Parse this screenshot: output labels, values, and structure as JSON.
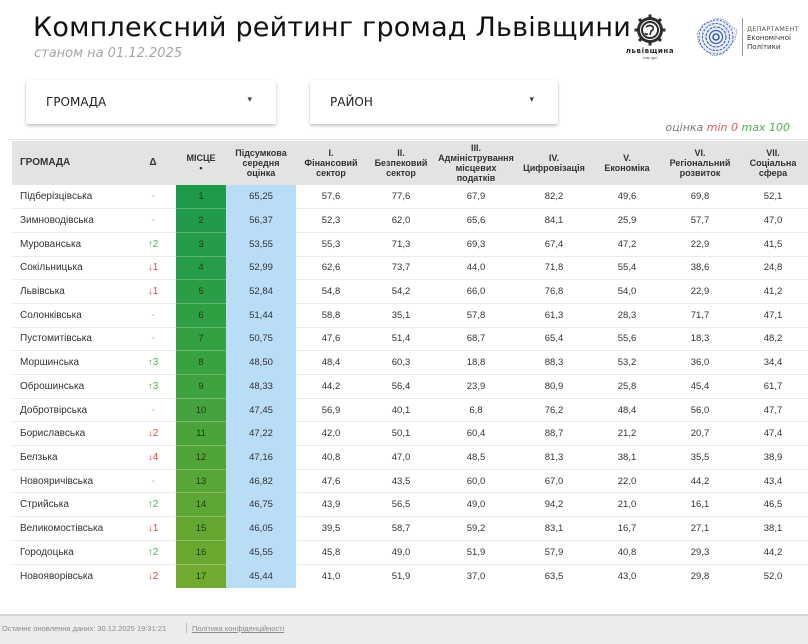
{
  "header": {
    "title": "Комплексний рейтинг громад Львівщини",
    "subtitle": "станом на 01.12.2025",
    "logo_left": {
      "line1": "львівщина",
      "line2": "нові ідеї"
    },
    "logo_right": {
      "line1": "ДЕПАРТАМЕНТ",
      "line2": "Економічної",
      "line3": "Політики"
    }
  },
  "filters": {
    "hromada": {
      "label": "ГРОМАДА",
      "arrow": "▾"
    },
    "raion": {
      "label": "РАЙОН",
      "arrow": "▾"
    }
  },
  "legend": {
    "prefix": "оцінка",
    "min_label": "min 0",
    "max_label": "max 100",
    "min_color": "#d35a5a",
    "max_color": "#4caf50"
  },
  "table": {
    "columns": [
      {
        "key": "name",
        "l1": "ГРОМАДА"
      },
      {
        "key": "delta",
        "l1": "Δ"
      },
      {
        "key": "place",
        "l1": "МІСЦЕ",
        "l2": "•"
      },
      {
        "key": "avg",
        "l1": "Підсумкова",
        "l2": "середня",
        "l3": "оцінка"
      },
      {
        "key": "c1",
        "l1": "I.",
        "l2": "Фінансовий",
        "l3": "сектор"
      },
      {
        "key": "c2",
        "l1": "II.",
        "l2": "Безпековий",
        "l3": "сектор"
      },
      {
        "key": "c3",
        "l1": "III.",
        "l2": "Адміністрування",
        "l3": "місцевих",
        "l4": "податків"
      },
      {
        "key": "c4",
        "l1": "IV.",
        "l2": "Цифровізація"
      },
      {
        "key": "c5",
        "l1": "V.",
        "l2": "Економіка"
      },
      {
        "key": "c6",
        "l1": "VI.",
        "l2": "Регіональний",
        "l3": "розвиток"
      },
      {
        "key": "c7",
        "l1": "VII.",
        "l2": "Соціальна",
        "l3": "сфера"
      }
    ],
    "rows": [
      {
        "name": "Підберізцівська",
        "delta": "-",
        "dir": "none",
        "place": "1",
        "avg": "65,25",
        "c1": "57,6",
        "c2": "77,6",
        "c3": "67,9",
        "c4": "82,2",
        "c5": "49,6",
        "c6": "69,8",
        "c7": "52,1",
        "color": "#1e9a4a"
      },
      {
        "name": "Зимноводівська",
        "delta": "-",
        "dir": "none",
        "place": "2",
        "avg": "56,37",
        "c1": "52,3",
        "c2": "62,0",
        "c3": "65,6",
        "c4": "84,1",
        "c5": "25,9",
        "c6": "57,7",
        "c7": "47,0",
        "color": "#219b49"
      },
      {
        "name": "Мурованська",
        "delta": "↑2",
        "dir": "up",
        "place": "3",
        "avg": "53,55",
        "c1": "55,3",
        "c2": "71,3",
        "c3": "69,3",
        "c4": "67,4",
        "c5": "47,2",
        "c6": "22,9",
        "c7": "41,5",
        "color": "#249c48"
      },
      {
        "name": "Сокільницька",
        "delta": "↓1",
        "dir": "down",
        "place": "4",
        "avg": "52,99",
        "c1": "62,6",
        "c2": "73,7",
        "c3": "44,0",
        "c4": "71,8",
        "c5": "55,4",
        "c6": "38,6",
        "c7": "24,8",
        "color": "#279d47"
      },
      {
        "name": "Львівська",
        "delta": "↓1",
        "dir": "down",
        "place": "5",
        "avg": "52,84",
        "c1": "54,8",
        "c2": "54,2",
        "c3": "66,0",
        "c4": "76,8",
        "c5": "54,0",
        "c6": "22,9",
        "c7": "41,2",
        "color": "#2b9e45"
      },
      {
        "name": "Солонківська",
        "delta": "-",
        "dir": "none",
        "place": "6",
        "avg": "51,44",
        "c1": "58,8",
        "c2": "35,1",
        "c3": "57,8",
        "c4": "61,3",
        "c5": "28,3",
        "c6": "71,7",
        "c7": "47,1",
        "color": "#2f9f44"
      },
      {
        "name": "Пустомитівська",
        "delta": "-",
        "dir": "none",
        "place": "7",
        "avg": "50,75",
        "c1": "47,6",
        "c2": "51,4",
        "c3": "68,7",
        "c4": "65,4",
        "c5": "55,6",
        "c6": "18,3",
        "c7": "48,2",
        "color": "#33a042"
      },
      {
        "name": "Моршинська",
        "delta": "↑3",
        "dir": "up",
        "place": "8",
        "avg": "48,50",
        "c1": "48,4",
        "c2": "60,3",
        "c3": "18,8",
        "c4": "88,3",
        "c5": "53,2",
        "c6": "36,0",
        "c7": "34,4",
        "color": "#38a140"
      },
      {
        "name": "Оброшинська",
        "delta": "↑3",
        "dir": "up",
        "place": "9",
        "avg": "48,33",
        "c1": "44,2",
        "c2": "56,4",
        "c3": "23,9",
        "c4": "80,9",
        "c5": "25,8",
        "c6": "45,4",
        "c7": "61,7",
        "color": "#3ea23e"
      },
      {
        "name": "Добротвірська",
        "delta": "-",
        "dir": "none",
        "place": "10",
        "avg": "47,45",
        "c1": "56,9",
        "c2": "40,1",
        "c3": "6,8",
        "c4": "76,2",
        "c5": "48,4",
        "c6": "56,0",
        "c7": "47,7",
        "color": "#44a33c"
      },
      {
        "name": "Бориславська",
        "delta": "↓2",
        "dir": "down",
        "place": "11",
        "avg": "47,22",
        "c1": "42,0",
        "c2": "50,1",
        "c3": "60,4",
        "c4": "88,7",
        "c5": "21,2",
        "c6": "20,7",
        "c7": "47,4",
        "color": "#4aa43a"
      },
      {
        "name": "Белзька",
        "delta": "↓4",
        "dir": "down",
        "place": "12",
        "avg": "47,16",
        "c1": "40,8",
        "c2": "47,0",
        "c3": "48,5",
        "c4": "81,3",
        "c5": "38,1",
        "c6": "35,5",
        "c7": "38,9",
        "color": "#51a538"
      },
      {
        "name": "Новояричівська",
        "delta": "-",
        "dir": "none",
        "place": "13",
        "avg": "46,82",
        "c1": "47,6",
        "c2": "43,5",
        "c3": "60,0",
        "c4": "67,0",
        "c5": "22,0",
        "c6": "44,2",
        "c7": "43,4",
        "color": "#58a636"
      },
      {
        "name": "Стрийська",
        "delta": "↑2",
        "dir": "up",
        "place": "14",
        "avg": "46,75",
        "c1": "43,9",
        "c2": "56,5",
        "c3": "49,0",
        "c4": "94,2",
        "c5": "21,0",
        "c6": "16,1",
        "c7": "46,5",
        "color": "#5ea734"
      },
      {
        "name": "Великомостівська",
        "delta": "↓1",
        "dir": "down",
        "place": "15",
        "avg": "46,05",
        "c1": "39,5",
        "c2": "58,7",
        "c3": "59,2",
        "c4": "83,1",
        "c5": "16,7",
        "c6": "27,1",
        "c7": "38,1",
        "color": "#64a832"
      },
      {
        "name": "Городоцька",
        "delta": "↑2",
        "dir": "up",
        "place": "16",
        "avg": "45,55",
        "c1": "45,8",
        "c2": "49,0",
        "c3": "51,9",
        "c4": "57,9",
        "c5": "40,8",
        "c6": "29,3",
        "c7": "44,2",
        "color": "#6aa930"
      },
      {
        "name": "Новояворівська",
        "delta": "↓2",
        "dir": "down",
        "place": "17",
        "avg": "45,44",
        "c1": "41,0",
        "c2": "51,9",
        "c3": "37,0",
        "c4": "63,5",
        "c5": "43,0",
        "c6": "29,8",
        "c7": "52,0",
        "color": "#70aa2e"
      }
    ]
  },
  "footer": {
    "last_update": "Останнє оновлення даних: 30.12.2025 19:31:21",
    "privacy_link": "Політика конфіденційності"
  }
}
